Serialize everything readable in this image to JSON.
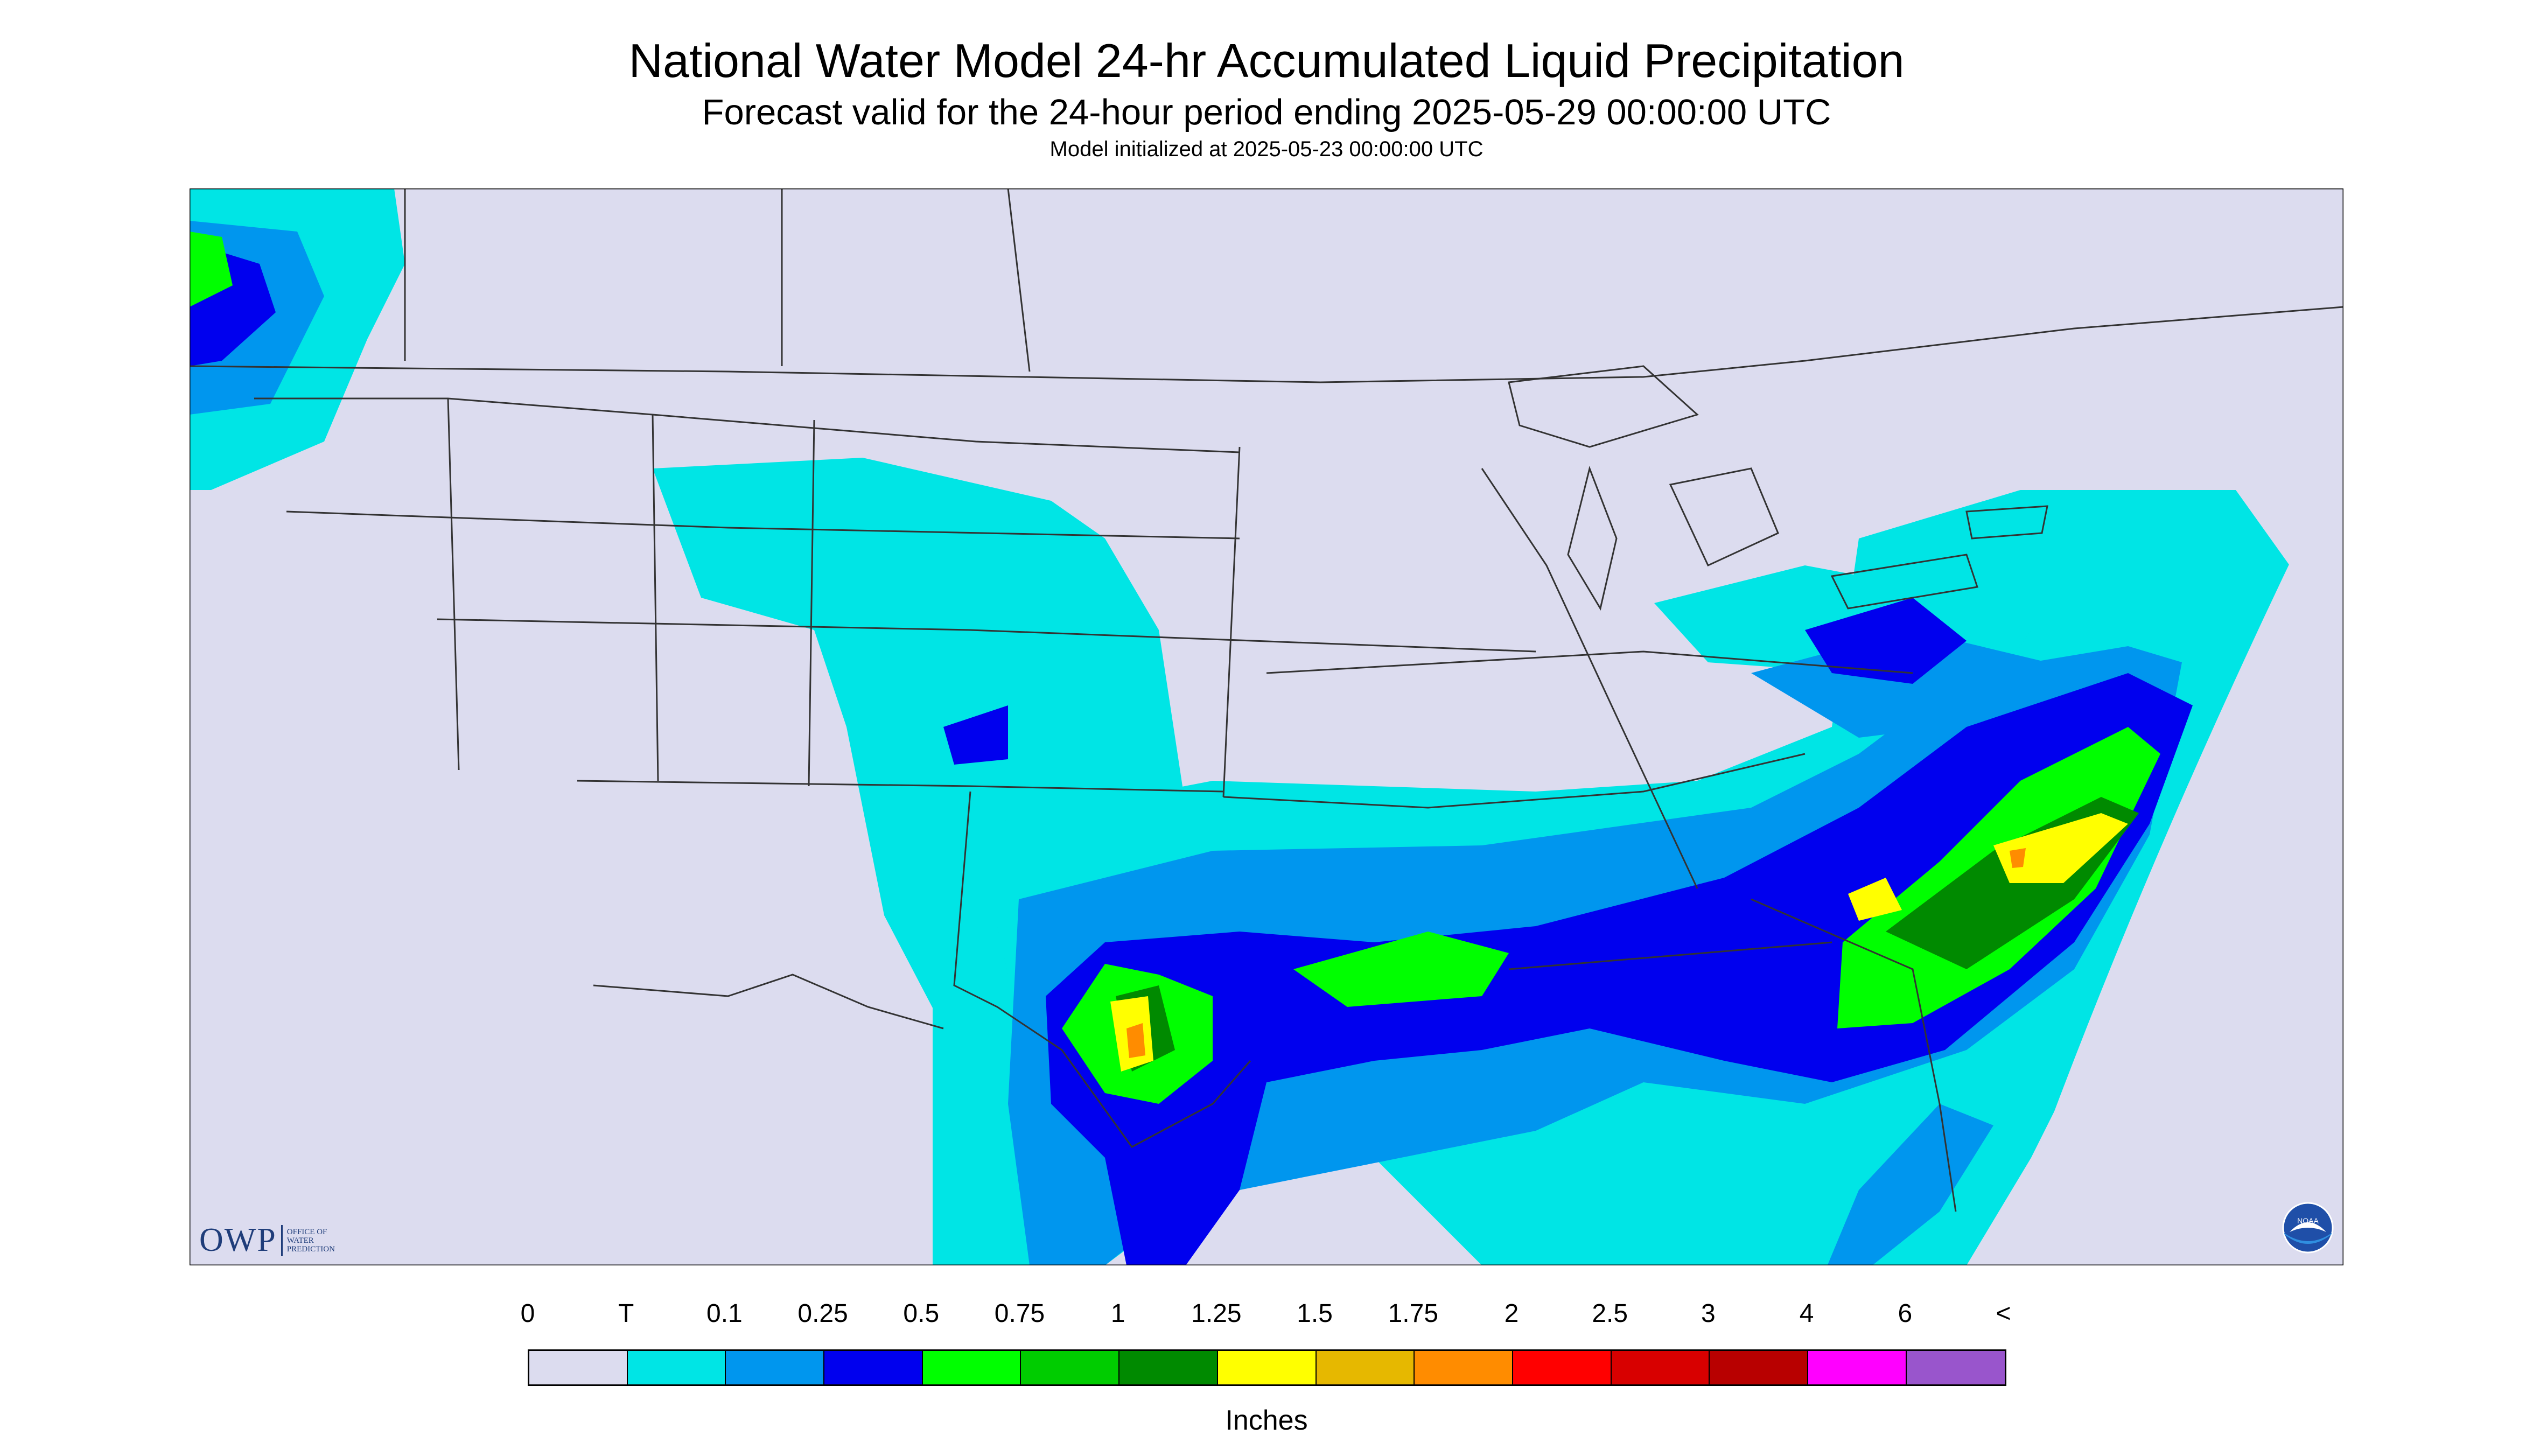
{
  "header": {
    "title": "National Water Model 24-hr Accumulated Liquid Precipitation",
    "subtitle": "Forecast valid for the 24-hour period ending 2025-05-29 00:00:00 UTC",
    "init_line": "Model initialized at 2025-05-23 00:00:00 UTC"
  },
  "legend": {
    "tick_labels": [
      "0",
      "T",
      "0.1",
      "0.25",
      "0.5",
      "0.75",
      "1",
      "1.25",
      "1.5",
      "1.75",
      "2",
      "2.5",
      "3",
      "4",
      "6",
      "<"
    ],
    "colors": [
      "#dcdcef",
      "#00e5e5",
      "#0096ee",
      "#0000ee",
      "#00ff00",
      "#00cc00",
      "#008a00",
      "#ffff00",
      "#e6b800",
      "#ff8c00",
      "#ff0000",
      "#d80000",
      "#b80000",
      "#ff00ff",
      "#9955cc"
    ],
    "units": "Inches"
  },
  "logos": {
    "owp_mark": "OWP",
    "owp_text": "OFFICE OF WATER PREDICTION",
    "noaa_mark": "NOAA"
  },
  "colors": {
    "background_land": "#dcdcef",
    "trace": "#00e5e5",
    "light": "#0096ee",
    "moderate": "#0000ee",
    "heavy": "#00ff00"
  }
}
